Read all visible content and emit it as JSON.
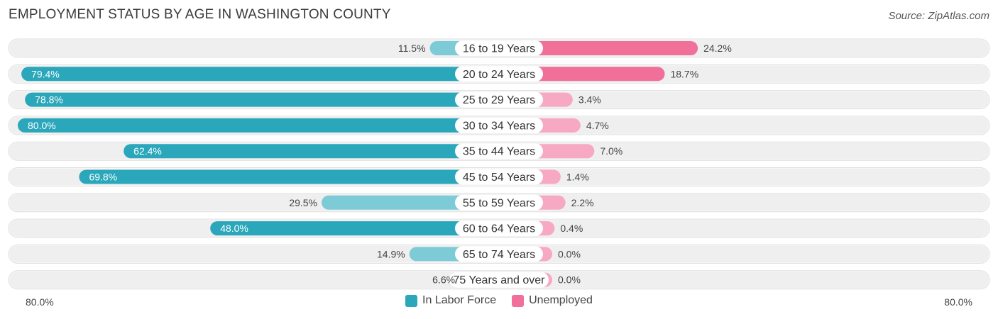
{
  "header": {
    "title": "EMPLOYMENT STATUS BY AGE IN WASHINGTON COUNTY",
    "source": "Source: ZipAtlas.com"
  },
  "colors": {
    "labor_dark": "#2aa7ba",
    "labor_light": "#7dcbd6",
    "unemp_dark": "#f0709a",
    "unemp_light": "#f7a8c2",
    "track": "#efefef"
  },
  "chart_data": {
    "type": "bar",
    "orientation": "horizontal-diverging",
    "title": "EMPLOYMENT STATUS BY AGE IN WASHINGTON COUNTY",
    "categories": [
      "16 to 19 Years",
      "20 to 24 Years",
      "25 to 29 Years",
      "30 to 34 Years",
      "35 to 44 Years",
      "45 to 54 Years",
      "55 to 59 Years",
      "60 to 64 Years",
      "65 to 74 Years",
      "75 Years and over"
    ],
    "series": [
      {
        "name": "In Labor Force",
        "values": [
          11.5,
          79.4,
          78.8,
          80.0,
          62.4,
          69.8,
          29.5,
          48.0,
          14.9,
          6.6
        ],
        "labels": [
          "11.5%",
          "79.4%",
          "78.8%",
          "80.0%",
          "62.4%",
          "69.8%",
          "29.5%",
          "48.0%",
          "14.9%",
          "6.6%"
        ]
      },
      {
        "name": "Unemployed",
        "values": [
          24.2,
          18.7,
          3.4,
          4.7,
          7.0,
          1.4,
          2.2,
          0.4,
          0.0,
          0.0
        ],
        "labels": [
          "24.2%",
          "18.7%",
          "3.4%",
          "4.7%",
          "7.0%",
          "1.4%",
          "2.2%",
          "0.4%",
          "0.0%",
          "0.0%"
        ]
      }
    ],
    "xlim": [
      -80,
      80
    ],
    "axis_labels": {
      "left": "80.0%",
      "right": "80.0%"
    },
    "legend": [
      "In Labor Force",
      "Unemployed"
    ],
    "legend_position": "bottom-center"
  }
}
